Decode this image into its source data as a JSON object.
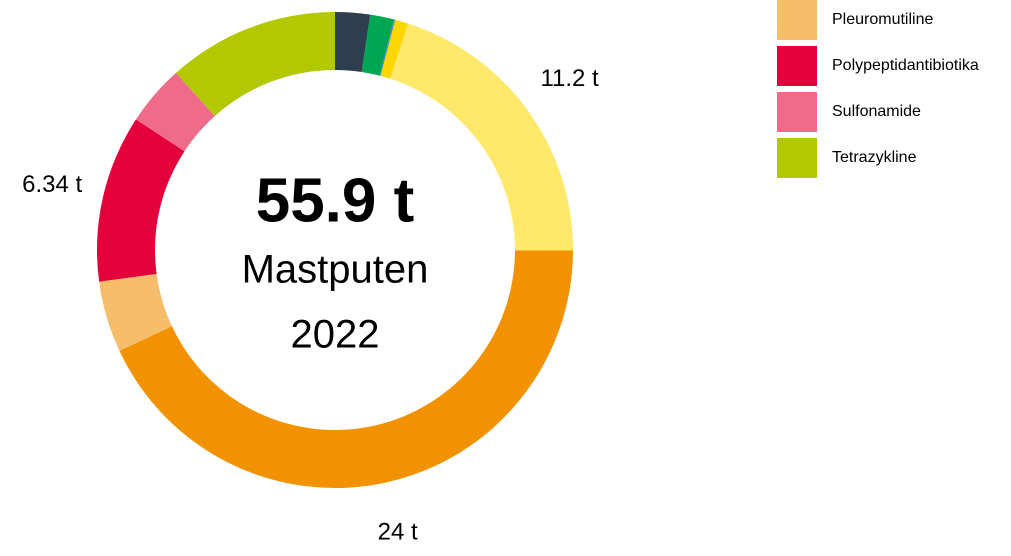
{
  "chart_data": {
    "type": "donut",
    "center_title": "55.9 t",
    "center_subtitle": "Mastputen",
    "center_year": "2022",
    "categories": [
      null,
      null,
      null,
      null,
      null,
      null,
      "Pleuromutiline",
      "Polypeptidantibiotika",
      "Sulfonamide",
      "Tetrazykline"
    ],
    "values": [
      1.32,
      0.9,
      0.05,
      0.5,
      11.2,
      24,
      2.7,
      6.34,
      2.3,
      6.5
    ],
    "value_labels": [
      null,
      null,
      null,
      null,
      "11.2 t",
      "24 t",
      null,
      "6.34 t",
      null,
      null
    ],
    "colors": [
      "#2d3e50",
      "#00a651",
      "#3a8fc0",
      "#ffd700",
      "#ffe86a",
      "#f39200",
      "#f6be6a",
      "#e4003a",
      "#f06a8a",
      "#b2c800"
    ]
  }
}
